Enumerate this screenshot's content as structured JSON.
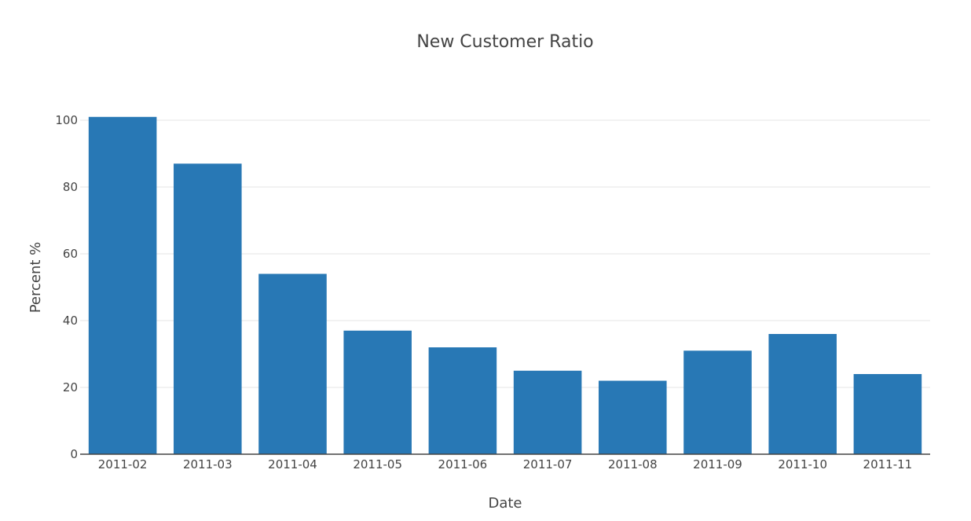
{
  "chart_data": {
    "type": "bar",
    "title": "New Customer Ratio",
    "xlabel": "Date",
    "ylabel": "Percent %",
    "categories": [
      "2011-02",
      "2011-03",
      "2011-04",
      "2011-05",
      "2011-06",
      "2011-07",
      "2011-08",
      "2011-09",
      "2011-10",
      "2011-11"
    ],
    "values": [
      101,
      87,
      54,
      37,
      32,
      25,
      22,
      31,
      36,
      24
    ],
    "ylim": [
      0,
      100
    ],
    "yticks": [
      0,
      20,
      40,
      60,
      80,
      100
    ],
    "grid": true,
    "legend": "none",
    "bar_color": "#2878b5",
    "grid_color": "#e6e6e6",
    "text_color": "#444444"
  }
}
